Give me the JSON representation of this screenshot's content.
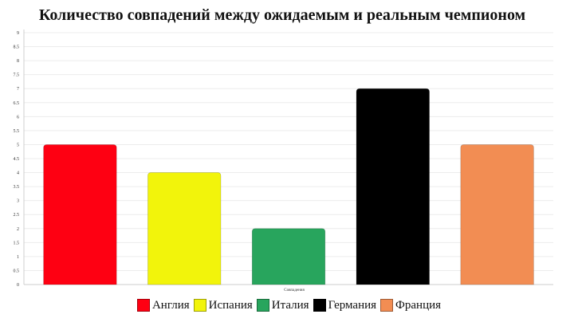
{
  "chart_data": {
    "type": "bar",
    "title": "Количество совпадений между ожидаемым и реальным чемпионом",
    "xlabel": "Совпадения",
    "ylabel": "",
    "categories": [
      "Совпадения"
    ],
    "series": [
      {
        "name": "Англия",
        "values": [
          5
        ],
        "color": "#fe0012"
      },
      {
        "name": "Испания",
        "values": [
          4
        ],
        "color": "#f2f40b"
      },
      {
        "name": "Италия",
        "values": [
          2
        ],
        "color": "#28a55d"
      },
      {
        "name": "Германия",
        "values": [
          7
        ],
        "color": "#000000"
      },
      {
        "name": "Франция",
        "values": [
          5
        ],
        "color": "#f28d53"
      }
    ],
    "ylim": [
      0,
      9
    ],
    "yticks": [
      "0",
      "0.5",
      "1",
      "1.5",
      "2",
      "2.5",
      "3",
      "3.5",
      "4",
      "4.5",
      "5",
      "5.5",
      "6",
      "6.5",
      "7",
      "7.5",
      "8",
      "8.5",
      "9"
    ],
    "grid": true,
    "legend_position": "bottom"
  }
}
